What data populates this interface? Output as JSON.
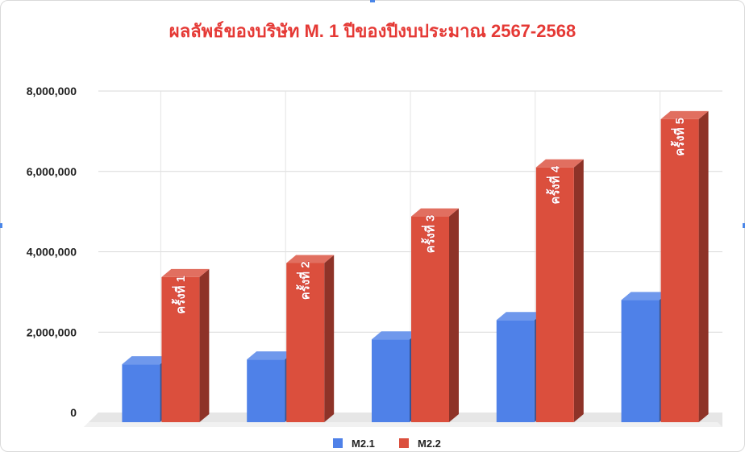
{
  "chart_data": {
    "type": "bar",
    "title": "ผลลัพธ์ของบริษัท M. 1 ปีของปีงบประมาณ 2567-2568",
    "xlabel": "",
    "ylabel": "",
    "categories": [
      "",
      "",
      "",
      "",
      ""
    ],
    "series": [
      {
        "name": "M2.1",
        "color": "#4f81e8",
        "values": [
          1200000,
          1320000,
          1820000,
          2300000,
          2800000
        ]
      },
      {
        "name": "M2.2",
        "color": "#db4f3d",
        "values": [
          3370000,
          3720000,
          4880000,
          6100000,
          7300000
        ],
        "data_labels": [
          "ครั้งที่ 1",
          "ครั้งที่ 2",
          "ครั้งที่ 3",
          "ครั้งที่ 4",
          "ครั้งที่ 5"
        ]
      }
    ],
    "y_ticks": [
      "0",
      "2,000,000",
      "4,000,000",
      "6,000,000",
      "8,000,000"
    ],
    "ylim": [
      0,
      8000000
    ],
    "grid": true,
    "legend_position": "bottom",
    "style": "3d-columns"
  }
}
